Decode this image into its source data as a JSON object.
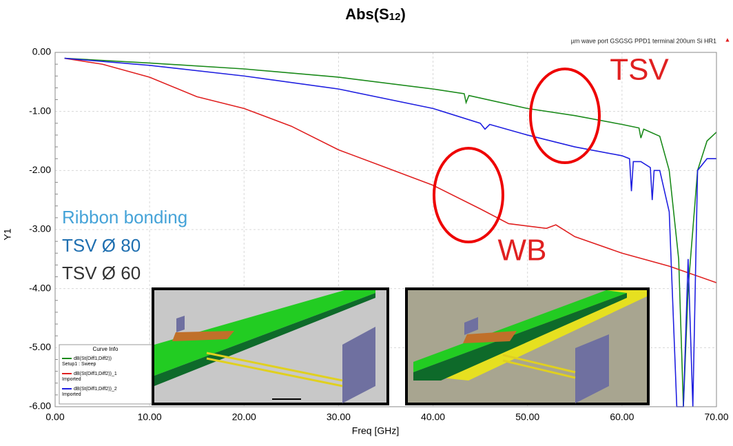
{
  "chart_data": {
    "type": "line",
    "title_parts": [
      "Abs(S",
      "12",
      ")"
    ],
    "subtitle": "µm wave port GSGSG PPD1  terminal 200um Si HR1",
    "x_label": "Freq [GHz]",
    "y_label": "Y1",
    "xlim": [
      0,
      70
    ],
    "ylim": [
      -6,
      0
    ],
    "xticks": [
      {
        "value": 0,
        "label": "0.00"
      },
      {
        "value": 10,
        "label": "10.00"
      },
      {
        "value": 20,
        "label": "20.00"
      },
      {
        "value": 30,
        "label": "30.00"
      },
      {
        "value": 40,
        "label": "40.00"
      },
      {
        "value": 50,
        "label": "50.00"
      },
      {
        "value": 60,
        "label": "60.00"
      },
      {
        "value": 70,
        "label": "70.00"
      }
    ],
    "yticks": [
      {
        "value": 0,
        "label": "0.00"
      },
      {
        "value": -1,
        "label": "-1.00"
      },
      {
        "value": -2,
        "label": "-2.00"
      },
      {
        "value": -3,
        "label": "-3.00"
      },
      {
        "value": -4,
        "label": "-4.00"
      },
      {
        "value": -5,
        "label": "-5.00"
      },
      {
        "value": -6,
        "label": "-6.00"
      }
    ],
    "grid": true,
    "legend_title": "Curve Info",
    "series": [
      {
        "name": "dB(St(Diff1,Diff2))",
        "source": "Setup1 : Sweep",
        "color": "#1a8a1a",
        "x": [
          1,
          10,
          20,
          30,
          40,
          43.3,
          43.5,
          43.8,
          50,
          55,
          60,
          61.8,
          62,
          62.3,
          64,
          65,
          66,
          66.5,
          67,
          68,
          69,
          70
        ],
        "values": [
          -0.1,
          -0.18,
          -0.28,
          -0.42,
          -0.62,
          -0.7,
          -0.85,
          -0.73,
          -0.95,
          -1.07,
          -1.22,
          -1.28,
          -1.45,
          -1.3,
          -1.42,
          -2.0,
          -3.5,
          -6,
          -4,
          -2.0,
          -1.5,
          -1.35
        ]
      },
      {
        "name": "dB(St(Diff1,Diff2))_1",
        "source": "Imported",
        "color": "#e02020",
        "x": [
          1,
          5,
          10,
          15,
          20,
          25,
          30,
          35,
          40,
          45,
          48,
          52,
          53,
          55,
          60,
          65,
          70
        ],
        "values": [
          -0.1,
          -0.2,
          -0.42,
          -0.75,
          -0.95,
          -1.25,
          -1.65,
          -1.95,
          -2.25,
          -2.65,
          -2.9,
          -2.98,
          -2.92,
          -3.12,
          -3.4,
          -3.62,
          -3.9
        ]
      },
      {
        "name": "dB(St(Diff1,Diff2))_2",
        "source": "Imported",
        "color": "#1f1fe0",
        "x": [
          1,
          10,
          20,
          30,
          40,
          45,
          45.5,
          46,
          50,
          55,
          60,
          60.8,
          61,
          61.2,
          62,
          63,
          63.2,
          63.4,
          64,
          65,
          65.8,
          66.5,
          67,
          67.5,
          68,
          69,
          70
        ],
        "values": [
          -0.1,
          -0.22,
          -0.4,
          -0.62,
          -0.95,
          -1.2,
          -1.3,
          -1.22,
          -1.4,
          -1.6,
          -1.75,
          -1.8,
          -2.35,
          -1.85,
          -1.85,
          -1.95,
          -2.5,
          -2.0,
          -2.0,
          -2.7,
          -6,
          -6,
          -3.5,
          -6,
          -2.0,
          -1.8,
          -1.8
        ]
      }
    ],
    "annotations": [
      {
        "text": "TSV",
        "color": "#e02020"
      },
      {
        "text": "WB",
        "color": "#e02020"
      },
      {
        "text": "Ribbon bonding",
        "color": "#45a3d8"
      },
      {
        "text": "TSV Ø 80",
        "color": "#1f6fb0"
      },
      {
        "text": "TSV Ø 60",
        "color": "#333333"
      }
    ]
  }
}
